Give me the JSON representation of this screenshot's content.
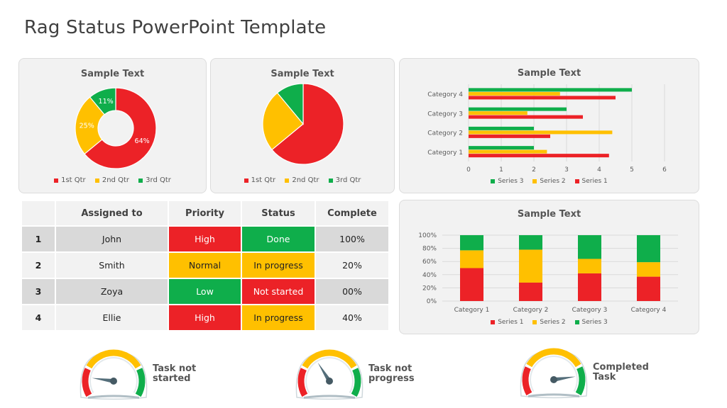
{
  "page": {
    "title": "Rag Status PowerPoint Template"
  },
  "colors": {
    "red": "#ec2227",
    "amber": "#ffc000",
    "green": "#0fae4b",
    "panel_bg": "#f2f2f2",
    "table_dark": "#d9d9d9"
  },
  "donut": {
    "title": "Sample Text",
    "labels": [
      "64%",
      "25%",
      "11%"
    ]
  },
  "pie": {
    "title": "Sample Text"
  },
  "quarters_legend": [
    "1st Qtr",
    "2nd Qtr",
    "3rd Qtr"
  ],
  "series_legend": [
    "Series 1",
    "Series 2",
    "Series 3"
  ],
  "table": {
    "headers": [
      "",
      "Assigned to",
      "Priority",
      "Status",
      "Complete"
    ],
    "rows": [
      {
        "num": "1",
        "name": "John",
        "priority": "High",
        "status": "Done",
        "complete": "100%"
      },
      {
        "num": "2",
        "name": "Smith",
        "priority": "Normal",
        "status": "In progress",
        "complete": "20%"
      },
      {
        "num": "3",
        "name": "Zoya",
        "priority": "Low",
        "status": "Not started",
        "complete": "00%"
      },
      {
        "num": "4",
        "name": "Ellie",
        "priority": "High",
        "status": "In progress",
        "complete": "40%"
      }
    ]
  },
  "gauges": [
    {
      "label_line1": "Task not",
      "label_line2": "started",
      "needle": "low"
    },
    {
      "label_line1": "Task not",
      "label_line2": "progress",
      "needle": "mid"
    },
    {
      "label_line1": "Completed",
      "label_line2": "Task",
      "needle": "high"
    }
  ],
  "chart_data": [
    {
      "type": "pie",
      "variant": "donut",
      "title": "Sample Text",
      "categories": [
        "1st Qtr",
        "2nd Qtr",
        "3rd Qtr"
      ],
      "values": [
        64,
        25,
        11
      ],
      "data_labels": [
        "64%",
        "25%",
        "11%"
      ],
      "legend": "bottom"
    },
    {
      "type": "pie",
      "title": "Sample Text",
      "categories": [
        "1st Qtr",
        "2nd Qtr",
        "3rd Qtr"
      ],
      "values": [
        64,
        25,
        11
      ],
      "legend": "bottom"
    },
    {
      "type": "bar",
      "orientation": "horizontal",
      "title": "Sample Text",
      "categories": [
        "Category 1",
        "Category 2",
        "Category 3",
        "Category 4"
      ],
      "series": [
        {
          "name": "Series 1",
          "values": [
            4.3,
            2.5,
            3.5,
            4.5
          ]
        },
        {
          "name": "Series 2",
          "values": [
            2.4,
            4.4,
            1.8,
            2.8
          ]
        },
        {
          "name": "Series 3",
          "values": [
            2,
            2,
            3,
            5
          ]
        }
      ],
      "xlim": [
        0,
        6
      ],
      "xticks": [
        "0",
        "1",
        "2",
        "3",
        "4",
        "5",
        "6"
      ],
      "legend": "bottom",
      "grid": true
    },
    {
      "type": "bar",
      "variant": "stacked-100",
      "title": "Sample Text",
      "categories": [
        "Category 1",
        "Category 2",
        "Category 3",
        "Category 4"
      ],
      "series": [
        {
          "name": "Series 1",
          "values": [
            50,
            28,
            42,
            37
          ]
        },
        {
          "name": "Series 2",
          "values": [
            27,
            50,
            22,
            22
          ]
        },
        {
          "name": "Series 3",
          "values": [
            23,
            22,
            36,
            41
          ]
        }
      ],
      "ylim": [
        0,
        100
      ],
      "yticks": [
        "0%",
        "20%",
        "40%",
        "60%",
        "80%",
        "100%"
      ],
      "legend": "bottom",
      "grid": true
    }
  ]
}
